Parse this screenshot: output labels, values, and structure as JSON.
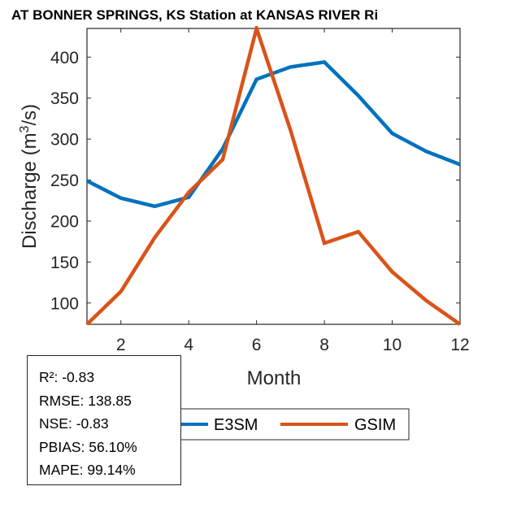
{
  "chart_data": {
    "type": "line",
    "title": "AT BONNER SPRINGS, KS  Station at  KANSAS RIVER  Ri",
    "xlabel": "Month",
    "ylabel": "Discharge (m³/s)",
    "ylabel_parts": {
      "before": "Discharge (m",
      "sup": "3",
      "after": "/s)"
    },
    "xlim": [
      1,
      12
    ],
    "ylim": [
      74,
      435
    ],
    "xticks": [
      2,
      4,
      6,
      8,
      10,
      12
    ],
    "yticks": [
      100,
      150,
      200,
      250,
      300,
      350,
      400
    ],
    "grid": false,
    "x": [
      1,
      2,
      3,
      4,
      5,
      6,
      7,
      8,
      9,
      10,
      11,
      12
    ],
    "series": [
      {
        "name": "E3SM",
        "color": "#0072BD",
        "values": [
          249,
          228,
          218,
          229,
          288,
          373,
          388,
          394,
          353,
          307,
          285,
          269
        ]
      },
      {
        "name": "GSIM",
        "color": "#D95319",
        "values": [
          74,
          114,
          180,
          235,
          275,
          435,
          311,
          173,
          187,
          138,
          103,
          74
        ]
      }
    ],
    "legend": {
      "placement": "bottom-outside",
      "orientation": "horizontal",
      "entries": [
        "E3SM",
        "GSIM"
      ]
    }
  },
  "stats": [
    "R²: -0.83",
    "RMSE: 138.85",
    "NSE: -0.83",
    "PBIAS: 56.10%",
    "MAPE: 99.14%"
  ]
}
